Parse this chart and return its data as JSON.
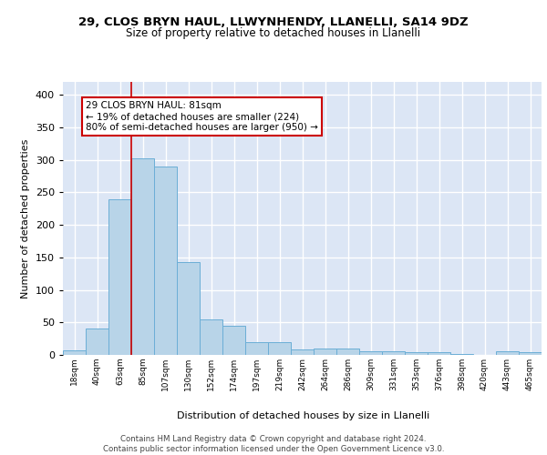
{
  "title1": "29, CLOS BRYN HAUL, LLWYNHENDY, LLANELLI, SA14 9DZ",
  "title2": "Size of property relative to detached houses in Llanelli",
  "xlabel": "Distribution of detached houses by size in Llanelli",
  "ylabel": "Number of detached properties",
  "bin_labels": [
    "18sqm",
    "40sqm",
    "63sqm",
    "85sqm",
    "107sqm",
    "130sqm",
    "152sqm",
    "174sqm",
    "197sqm",
    "219sqm",
    "242sqm",
    "264sqm",
    "286sqm",
    "309sqm",
    "331sqm",
    "353sqm",
    "376sqm",
    "398sqm",
    "420sqm",
    "443sqm",
    "465sqm"
  ],
  "bar_values": [
    7,
    40,
    240,
    303,
    290,
    143,
    55,
    45,
    20,
    20,
    8,
    10,
    10,
    5,
    5,
    4,
    4,
    1,
    0,
    5,
    4
  ],
  "bar_color": "#b8d4e8",
  "bar_edge_color": "#6baed6",
  "bg_color": "#dce6f5",
  "grid_color": "#ffffff",
  "vline_color": "#cc0000",
  "vline_x_idx": 2.5,
  "annotation_text": "29 CLOS BRYN HAUL: 81sqm\n← 19% of detached houses are smaller (224)\n80% of semi-detached houses are larger (950) →",
  "annotation_box_color": "#ffffff",
  "annotation_box_edge": "#cc0000",
  "footer_text": "Contains HM Land Registry data © Crown copyright and database right 2024.\nContains public sector information licensed under the Open Government Licence v3.0.",
  "ylim": [
    0,
    420
  ],
  "yticks": [
    0,
    50,
    100,
    150,
    200,
    250,
    300,
    350,
    400
  ]
}
